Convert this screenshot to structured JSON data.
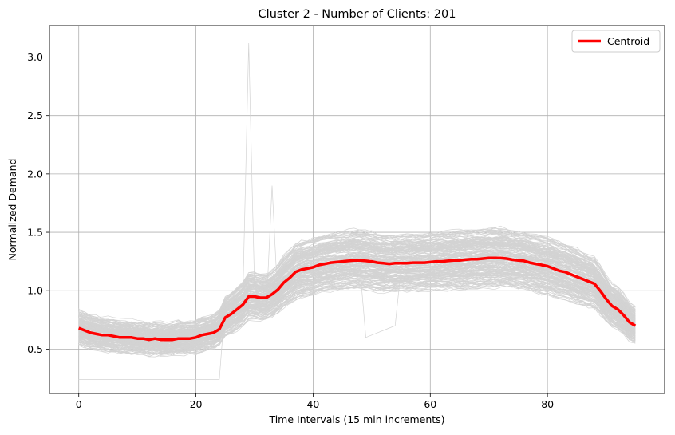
{
  "chart_data": {
    "type": "line",
    "title": "Cluster 2 - Number of Clients: 201",
    "xlabel": "Time Intervals (15 min increments)",
    "ylabel": "Normalized Demand",
    "xlim": [
      -5,
      100
    ],
    "ylim": [
      0.12,
      3.27
    ],
    "xticks": [
      0,
      20,
      40,
      60,
      80
    ],
    "yticks": [
      0.5,
      1.0,
      1.5,
      2.0,
      2.5,
      3.0
    ],
    "ytick_labels": [
      "0.5",
      "1.0",
      "1.5",
      "2.0",
      "2.5",
      "3.0"
    ],
    "grid": true,
    "legend": {
      "placement": "top-right",
      "entries": [
        "Centroid"
      ]
    },
    "colors": {
      "centroid": "#ff0000",
      "clients": "#d3d3d3",
      "grid": "#b0b0b0"
    },
    "client_series_count": 201,
    "series": [
      {
        "name": "Centroid",
        "x": [
          0,
          1,
          2,
          3,
          4,
          5,
          6,
          7,
          8,
          9,
          10,
          11,
          12,
          13,
          14,
          15,
          16,
          17,
          18,
          19,
          20,
          21,
          22,
          23,
          24,
          25,
          26,
          27,
          28,
          29,
          30,
          31,
          32,
          33,
          34,
          35,
          36,
          37,
          38,
          39,
          40,
          41,
          42,
          43,
          44,
          45,
          46,
          47,
          48,
          49,
          50,
          51,
          52,
          53,
          54,
          55,
          56,
          57,
          58,
          59,
          60,
          61,
          62,
          63,
          64,
          65,
          66,
          67,
          68,
          69,
          70,
          71,
          72,
          73,
          74,
          75,
          76,
          77,
          78,
          79,
          80,
          81,
          82,
          83,
          84,
          85,
          86,
          87,
          88,
          89,
          90,
          91,
          92,
          93,
          94,
          95
        ],
        "values": [
          0.68,
          0.66,
          0.64,
          0.63,
          0.62,
          0.62,
          0.61,
          0.6,
          0.6,
          0.6,
          0.59,
          0.59,
          0.58,
          0.59,
          0.58,
          0.58,
          0.58,
          0.59,
          0.59,
          0.59,
          0.6,
          0.62,
          0.63,
          0.64,
          0.67,
          0.77,
          0.8,
          0.84,
          0.88,
          0.95,
          0.95,
          0.94,
          0.94,
          0.97,
          1.01,
          1.07,
          1.11,
          1.16,
          1.18,
          1.19,
          1.2,
          1.22,
          1.23,
          1.24,
          1.245,
          1.25,
          1.255,
          1.26,
          1.26,
          1.255,
          1.25,
          1.24,
          1.235,
          1.23,
          1.235,
          1.235,
          1.235,
          1.24,
          1.24,
          1.24,
          1.245,
          1.25,
          1.25,
          1.255,
          1.26,
          1.26,
          1.265,
          1.27,
          1.27,
          1.275,
          1.28,
          1.28,
          1.28,
          1.275,
          1.265,
          1.26,
          1.255,
          1.24,
          1.23,
          1.22,
          1.21,
          1.19,
          1.17,
          1.16,
          1.14,
          1.12,
          1.1,
          1.08,
          1.06,
          1.0,
          0.93,
          0.87,
          0.84,
          0.79,
          0.73,
          0.7
        ]
      }
    ]
  }
}
